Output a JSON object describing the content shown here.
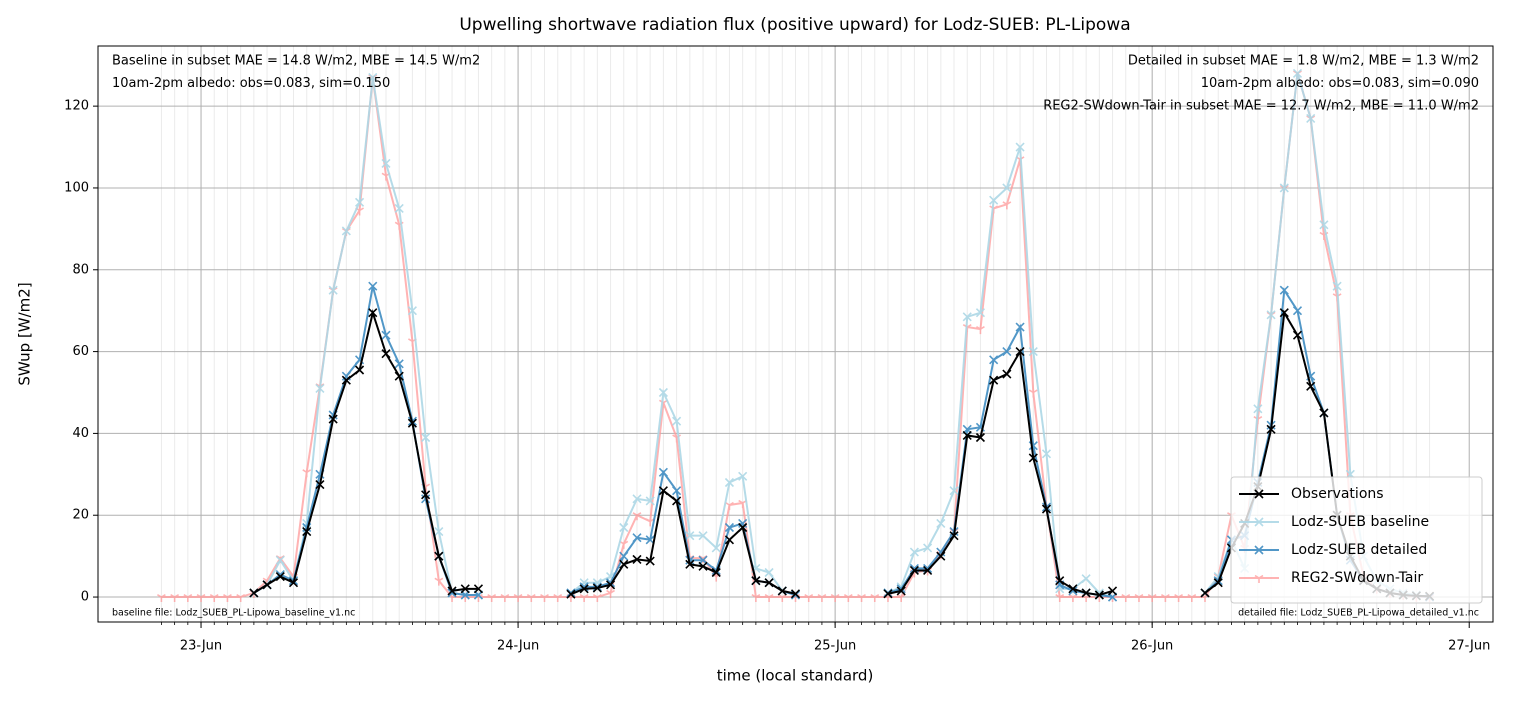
{
  "chart_data": {
    "type": "line",
    "title": "Upwelling shortwave radiation flux (positive upward) for Lodz-SUEB: PL-Lipowa",
    "xlabel": "time (local standard)",
    "ylabel": "SWup [W/m2]",
    "x": [
      -3,
      -2,
      -1,
      0,
      1,
      2,
      3,
      4,
      5,
      6,
      7,
      8,
      9,
      10,
      11,
      12,
      13,
      14,
      15,
      16,
      17,
      18,
      19,
      20,
      21,
      22,
      23,
      24,
      25,
      26,
      27,
      28,
      29,
      30,
      31,
      32,
      33,
      34,
      35,
      36,
      37,
      38,
      39,
      40,
      41,
      42,
      43,
      44,
      45,
      46,
      47,
      48,
      49,
      50,
      51,
      52,
      53,
      54,
      55,
      56,
      57,
      58,
      59,
      60,
      61,
      62,
      63,
      64,
      65,
      66,
      67,
      68,
      69,
      70,
      71,
      72,
      73,
      74,
      75,
      76,
      77,
      78,
      79,
      80,
      81,
      82,
      83,
      84,
      85,
      86,
      87,
      88,
      89,
      90,
      91,
      92,
      93
    ],
    "xlim": [
      -7.8,
      97.8
    ],
    "xticks": [
      {
        "value": 0,
        "label": "23-Jun"
      },
      {
        "value": 24,
        "label": "24-Jun"
      },
      {
        "value": 48,
        "label": "25-Jun"
      },
      {
        "value": 72,
        "label": "26-Jun"
      },
      {
        "value": 96,
        "label": "27-Jun"
      }
    ],
    "ylim": [
      -6.1,
      134.7
    ],
    "yticks": [
      0,
      20,
      40,
      60,
      80,
      100,
      120
    ],
    "grid": true,
    "legend": "lower right",
    "series": [
      {
        "name": "REG2-SWdown-Tair",
        "color": "#ff9a9a",
        "marker": "tri",
        "values": [
          0,
          0,
          0,
          0,
          0,
          0,
          0,
          1,
          4,
          9.5,
          5,
          30.5,
          51.5,
          75,
          89.5,
          94.5,
          127,
          103,
          91,
          62.5,
          27,
          4,
          0,
          0,
          0,
          0,
          0,
          0,
          0,
          0,
          0,
          0,
          0,
          0,
          1,
          13,
          20,
          18.5,
          47.5,
          39,
          9.5,
          9.5,
          5,
          22.5,
          23,
          0,
          0,
          0,
          0,
          0,
          0,
          0,
          0,
          0,
          0,
          0,
          0,
          6,
          6.5,
          10.5,
          16,
          66,
          65.5,
          95,
          96,
          107,
          50,
          22,
          0,
          0,
          0,
          0,
          0,
          0,
          0,
          0,
          0,
          0,
          0,
          0,
          5,
          20,
          12,
          43.5,
          69,
          100,
          128,
          117,
          88.5,
          73.5,
          20,
          5,
          2,
          1,
          0.5,
          0,
          0
        ]
      },
      {
        "name": "Lodz-SUEB baseline",
        "color": "#add8e6",
        "marker": "x",
        "values": [
          null,
          null,
          null,
          null,
          null,
          null,
          null,
          1,
          3,
          9,
          4,
          18,
          51,
          75,
          89.5,
          96.5,
          127,
          106,
          95,
          70,
          39,
          16,
          1,
          0.5,
          0.5,
          null,
          null,
          null,
          null,
          null,
          null,
          1,
          3.5,
          3.5,
          5,
          17,
          24,
          23.5,
          50,
          43,
          15,
          15,
          12,
          28,
          29.5,
          7,
          6,
          1.5,
          0.5,
          null,
          null,
          null,
          null,
          null,
          null,
          1,
          2.5,
          11,
          12,
          18,
          26,
          68.5,
          69.5,
          97,
          100,
          110,
          60,
          35,
          2,
          2,
          4.5,
          1,
          0,
          null,
          null,
          null,
          null,
          null,
          null,
          1,
          5,
          14,
          7,
          46,
          69,
          100,
          128,
          117,
          91,
          76,
          30,
          10,
          4,
          2,
          1,
          0.5,
          0
        ]
      },
      {
        "name": "Lodz-SUEB detailed",
        "color": "#3f8cc2",
        "marker": "x",
        "values": [
          null,
          null,
          null,
          null,
          null,
          null,
          null,
          1,
          3,
          5.5,
          4,
          17,
          30,
          44.5,
          54,
          58,
          76,
          64,
          57,
          43,
          24,
          10,
          1,
          0.5,
          0.5,
          null,
          null,
          null,
          null,
          null,
          null,
          1,
          2.5,
          2.5,
          3.5,
          10,
          14.5,
          14,
          30.5,
          26,
          9,
          9,
          6.5,
          17,
          18,
          4,
          3.5,
          1.5,
          0.5,
          null,
          null,
          null,
          null,
          null,
          null,
          1,
          2,
          7,
          7,
          11,
          16,
          41,
          41.5,
          58,
          60,
          66,
          37,
          22,
          3,
          1.5,
          1,
          0.5,
          0,
          null,
          null,
          null,
          null,
          null,
          null,
          1,
          4,
          14,
          15,
          28,
          42,
          75,
          70,
          54,
          45,
          20,
          9,
          4,
          2,
          1,
          0.5,
          0.3,
          0
        ]
      },
      {
        "name": "Observations",
        "color": "#000000",
        "marker": "x",
        "values": [
          null,
          null,
          null,
          null,
          null,
          null,
          null,
          1,
          3,
          5,
          3.5,
          16,
          27.5,
          43.5,
          53,
          55.5,
          69.5,
          59.5,
          54,
          42.5,
          25,
          10,
          1.5,
          2,
          2,
          null,
          null,
          null,
          null,
          null,
          null,
          0.7,
          2,
          2.2,
          3,
          8,
          9.2,
          8.8,
          26,
          23.5,
          8,
          7.5,
          6,
          14,
          17,
          4,
          3.5,
          1.5,
          0.8,
          null,
          null,
          null,
          null,
          null,
          null,
          0.8,
          1.5,
          6.5,
          6.5,
          10,
          15,
          39.5,
          39,
          53,
          54.5,
          60,
          34,
          21.5,
          4,
          2,
          1,
          0.5,
          1.5,
          null,
          null,
          null,
          null,
          null,
          null,
          1,
          3.5,
          12,
          18,
          27,
          41,
          69.5,
          64,
          51.5,
          45,
          20,
          10,
          4,
          2,
          1,
          0.5,
          0.3,
          0.2
        ]
      }
    ],
    "legend_order": [
      3,
      1,
      2,
      0
    ],
    "annotations": [
      {
        "text": "Baseline in subset MAE = 14.8 W/m2, MBE = 14.5 W/m2",
        "color": "#add8e6",
        "loc": "upper left"
      },
      {
        "text": "10am-2pm albedo: obs=0.083, sim=0.150",
        "color": "#000000",
        "loc": "upper left"
      },
      {
        "text": "Detailed in subset MAE = 1.8 W/m2, MBE = 1.3 W/m2",
        "color": "#1f77b4",
        "loc": "upper right"
      },
      {
        "text": "10am-2pm albedo: obs=0.083, sim=0.090",
        "color": "#000000",
        "loc": "upper right"
      },
      {
        "text": "REG2-SWdown-Tair in subset MAE = 12.7 W/m2, MBE = 11.0 W/m2",
        "color": "#ff0000",
        "loc": "upper right"
      },
      {
        "text": "baseline file: Lodz_SUEB_PL-Lipowa_baseline_v1.nc",
        "color": "#000000",
        "loc": "lower left"
      },
      {
        "text": "detailed file: Lodz_SUEB_PL-Lipowa_detailed_v1.nc",
        "color": "#000000",
        "loc": "lower right"
      }
    ]
  }
}
